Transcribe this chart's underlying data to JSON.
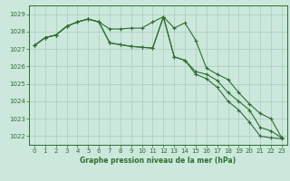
{
  "title": "Graphe pression niveau de la mer (hPa)",
  "bg_color": "#cce8dd",
  "grid_color": "#aaccbb",
  "line_color": "#2d6e2d",
  "marker": "+",
  "x": [
    0,
    1,
    2,
    3,
    4,
    5,
    6,
    7,
    8,
    9,
    10,
    11,
    12,
    13,
    14,
    15,
    16,
    17,
    18,
    19,
    20,
    21,
    22,
    23
  ],
  "s1": [
    1027.2,
    1027.65,
    1027.8,
    1028.3,
    1028.55,
    1028.72,
    1028.55,
    1028.15,
    1028.15,
    1028.2,
    1028.2,
    1028.55,
    1028.85,
    1028.2,
    1028.5,
    1027.5,
    1025.9,
    1025.55,
    1025.25,
    1024.5,
    1023.85,
    1023.3,
    1023.0,
    1021.9
  ],
  "s2": [
    1027.2,
    1027.65,
    1027.8,
    1028.3,
    1028.55,
    1028.72,
    1028.55,
    1027.35,
    1027.25,
    1027.15,
    1027.1,
    1027.05,
    1028.85,
    1026.55,
    1026.35,
    1025.7,
    1025.55,
    1025.2,
    1024.5,
    1024.0,
    1023.5,
    1022.5,
    1022.3,
    1021.9
  ],
  "s3": [
    1027.2,
    1027.65,
    1027.8,
    1028.3,
    1028.55,
    1028.72,
    1028.55,
    1027.35,
    1027.25,
    1027.15,
    1027.1,
    1027.05,
    1028.85,
    1026.55,
    1026.35,
    1025.55,
    1025.3,
    1024.8,
    1024.0,
    1023.5,
    1022.8,
    1022.0,
    1021.9,
    1021.85
  ],
  "ylim": [
    1021.5,
    1029.5
  ],
  "xlim": [
    -0.5,
    23.5
  ],
  "yticks": [
    1022,
    1023,
    1024,
    1025,
    1026,
    1027,
    1028,
    1029
  ],
  "title_fontsize": 5.5,
  "tick_fontsize": 5,
  "lw": 0.8,
  "ms": 3
}
